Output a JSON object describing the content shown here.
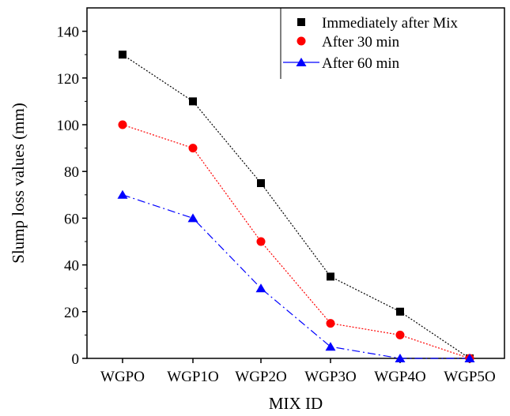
{
  "chart_data": {
    "type": "line",
    "categories": [
      "WGPO",
      "WGP1O",
      "WGP2O",
      "WGP3O",
      "WGP4O",
      "WGP5O"
    ],
    "xlabel": "MIX ID",
    "ylabel": "Slump loss values (mm)",
    "ylim": [
      0,
      150
    ],
    "yticks": [
      0,
      20,
      40,
      60,
      80,
      100,
      120,
      140
    ],
    "grid": false,
    "legend_position": "top-right",
    "series": [
      {
        "name": "Immediately after Mix",
        "values": [
          130,
          110,
          75,
          35,
          20,
          0
        ],
        "color": "#000000",
        "marker": "square",
        "line": "dotted"
      },
      {
        "name": "After 30 min",
        "values": [
          100,
          90,
          50,
          15,
          10,
          0
        ],
        "color": "#ff0000",
        "marker": "circle",
        "line": "dotted"
      },
      {
        "name": "After 60 min",
        "values": [
          70,
          60,
          30,
          5,
          0,
          0
        ],
        "color": "#0000ff",
        "marker": "triangle",
        "line": "dashdot"
      }
    ]
  }
}
